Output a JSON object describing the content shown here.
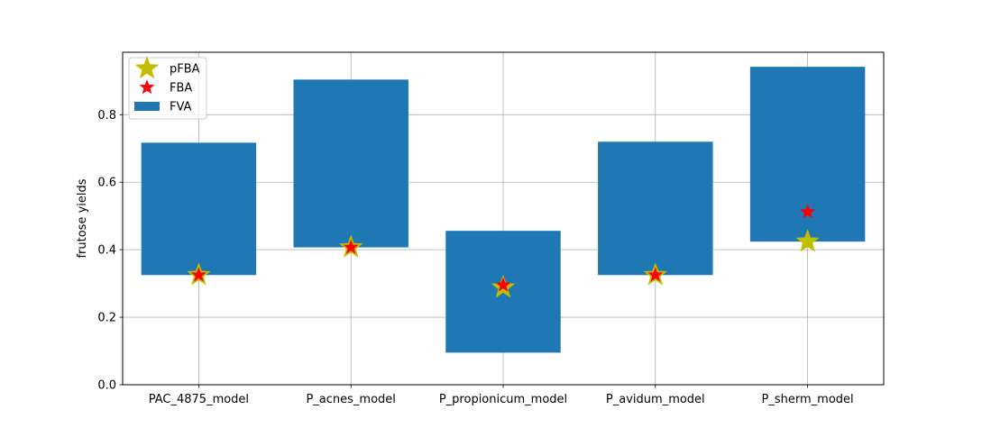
{
  "chart_data": {
    "type": "bar",
    "title": "",
    "xlabel": "",
    "ylabel": "frutose yields",
    "ylim": [
      0,
      0.985
    ],
    "yticks": [
      0.0,
      0.2,
      0.4,
      0.6,
      0.8
    ],
    "ytick_labels": [
      "0.0",
      "0.2",
      "0.4",
      "0.6",
      "0.8"
    ],
    "grid": true,
    "legend_position": "top-left",
    "categories": [
      "PAC_4875_model",
      "P_acnes_model",
      "P_propionicum_model",
      "P_avidum_model",
      "P_sherm_model"
    ],
    "series": [
      {
        "name": "FVA",
        "kind": "range-bar",
        "color": "#1f77b4",
        "ranges": [
          [
            0.325,
            0.717
          ],
          [
            0.407,
            0.904
          ],
          [
            0.095,
            0.456
          ],
          [
            0.325,
            0.72
          ],
          [
            0.424,
            0.942
          ]
        ]
      },
      {
        "name": "pFBA",
        "kind": "star-marker",
        "color": "#bfbf00",
        "values": [
          0.325,
          0.407,
          0.288,
          0.325,
          0.424
        ]
      },
      {
        "name": "FBA",
        "kind": "star-marker",
        "color": "#ff0000",
        "values": [
          0.325,
          0.407,
          0.295,
          0.325,
          0.512
        ]
      }
    ],
    "legend": [
      "pFBA",
      "FBA",
      "FVA"
    ]
  }
}
